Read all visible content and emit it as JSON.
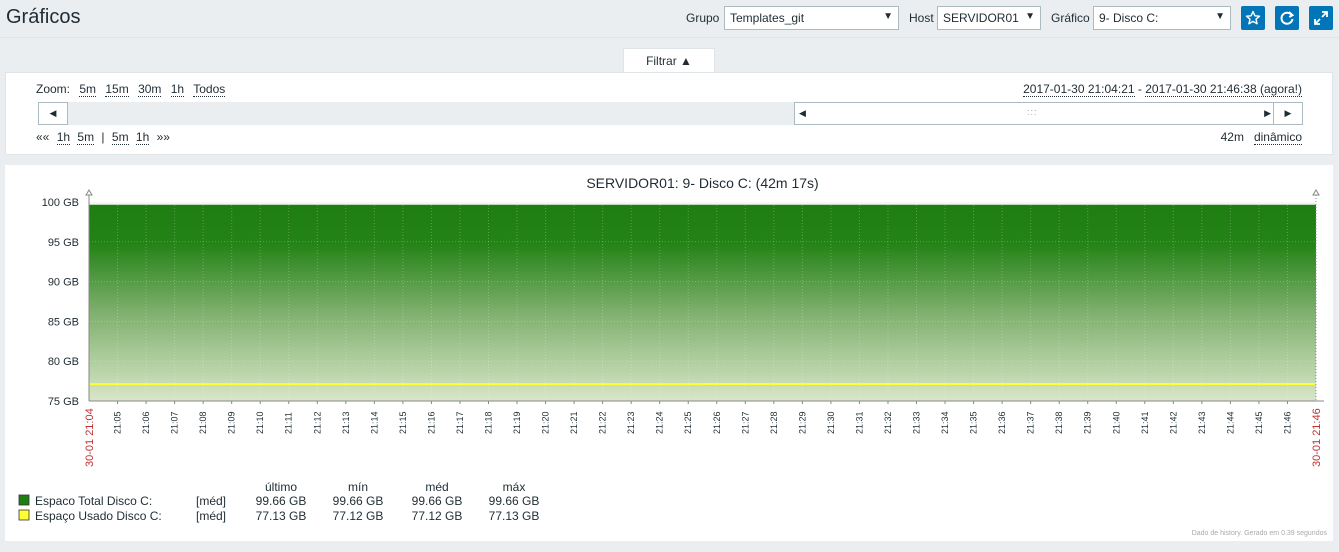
{
  "page": {
    "title": "Gráficos"
  },
  "controls": {
    "group_label": "Grupo",
    "group_value": "Templates_git",
    "host_label": "Host",
    "host_value": "SERVIDOR01",
    "graph_label": "Gráfico",
    "graph_value": "9- Disco C:"
  },
  "icons": {
    "favorite": "star-icon",
    "refresh": "refresh-icon",
    "fullscreen": "fullscreen-icon"
  },
  "filter": {
    "tab_label": "Filtrar ▲",
    "zoom_label": "Zoom:",
    "zoom_options": [
      "5m",
      "15m",
      "30m",
      "1h",
      "Todos"
    ],
    "period_start": "2017-01-30 21:04:21",
    "period_sep": " - ",
    "period_end": "2017-01-30 21:46:38 (agora!)",
    "nav_back": "««",
    "nav_back_options": [
      "1h",
      "5m"
    ],
    "nav_sep": "|",
    "nav_fwd_options": [
      "5m",
      "1h"
    ],
    "nav_fwd": "»»",
    "period_length": "42m",
    "dynamic_label": "dinâmico"
  },
  "chart_data": {
    "type": "area",
    "title": "SERVIDOR01: 9- Disco C: (42m 17s)",
    "y_ticks": [
      "100 GB",
      "95 GB",
      "90 GB",
      "85 GB",
      "80 GB",
      "75 GB"
    ],
    "ylim": [
      75,
      100
    ],
    "x_start_label": "30-01 21:04",
    "x_end_label": "30-01 21:46",
    "x_ticks": [
      "21:05",
      "21:06",
      "21:07",
      "21:08",
      "21:09",
      "21:10",
      "21:11",
      "21:12",
      "21:13",
      "21:14",
      "21:15",
      "21:16",
      "21:17",
      "21:18",
      "21:19",
      "21:20",
      "21:21",
      "21:22",
      "21:23",
      "21:24",
      "21:25",
      "21:26",
      "21:27",
      "21:28",
      "21:29",
      "21:30",
      "21:31",
      "21:32",
      "21:33",
      "21:34",
      "21:35",
      "21:36",
      "21:37",
      "21:38",
      "21:39",
      "21:40",
      "21:41",
      "21:42",
      "21:43",
      "21:44",
      "21:45",
      "21:46"
    ],
    "series": [
      {
        "name": "Espaco Total Disco C:",
        "color": "#1e7e12",
        "values": [
          99.66,
          99.66
        ]
      },
      {
        "name": "Espaço Usado Disco C:",
        "color": "#ffff33",
        "values": [
          77.12,
          77.12,
          77.13,
          77.13
        ]
      }
    ],
    "series_change_fraction": 0.5,
    "legend_headers": [
      "último",
      "mín",
      "méd",
      "máx"
    ],
    "legend_rows": [
      {
        "name": "Espaco Total Disco C:",
        "func": "[méd]",
        "last": "99.66 GB",
        "min": "99.66 GB",
        "avg": "99.66 GB",
        "max": "99.66 GB",
        "color": "#1e7e12"
      },
      {
        "name": "Espaço Usado Disco C:",
        "func": "[méd]",
        "last": "77.13 GB",
        "min": "77.12 GB",
        "avg": "77.12 GB",
        "max": "77.13 GB",
        "color": "#ffff33"
      }
    ],
    "footer": "Dado de history. Gerado em 0.39 segundos",
    "grid": true
  }
}
